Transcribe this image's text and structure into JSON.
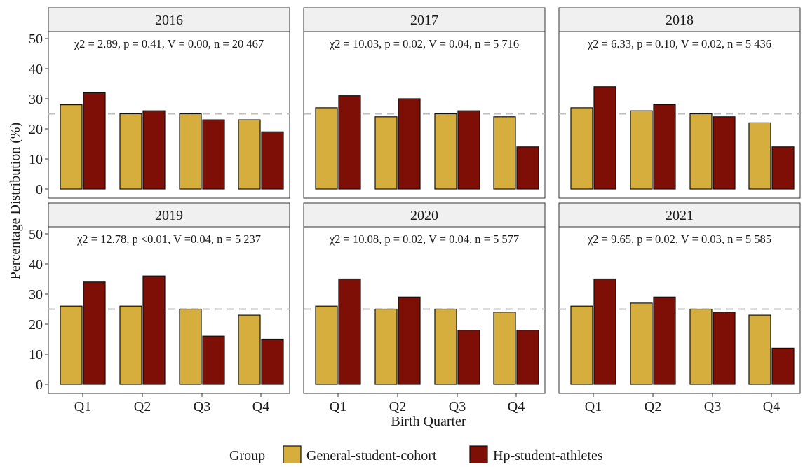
{
  "chart_data": {
    "type": "bar",
    "facet_by": "year",
    "categories": [
      "Q1",
      "Q2",
      "Q3",
      "Q4"
    ],
    "xlabel": "Birth Quarter",
    "ylabel": "Percentage Distribution (%)",
    "ylim": [
      0,
      50
    ],
    "yticks": [
      0,
      10,
      20,
      30,
      40,
      50
    ],
    "reference_line": {
      "y": 25,
      "style": "dashed",
      "color": "#bdbdbd"
    },
    "grid": false,
    "legend": {
      "title": "Group",
      "position": "bottom",
      "entries": [
        {
          "label": "General-student-cohort",
          "color": "#d6ae3d"
        },
        {
          "label": "Hp-student-athletes",
          "color": "#7d0f07"
        }
      ]
    },
    "panels": [
      {
        "title": "2016",
        "annotation": "χ2 = 2.89, p = 0.41, V = 0.00, n = 20 467",
        "series": [
          {
            "name": "General-student-cohort",
            "values": [
              28,
              25,
              25,
              23
            ]
          },
          {
            "name": "Hp-student-athletes",
            "values": [
              32,
              26,
              23,
              19
            ]
          }
        ]
      },
      {
        "title": "2017",
        "annotation": "χ2 = 10.03, p = 0.02, V = 0.04, n = 5 716",
        "series": [
          {
            "name": "General-student-cohort",
            "values": [
              27,
              24,
              25,
              24
            ]
          },
          {
            "name": "Hp-student-athletes",
            "values": [
              31,
              30,
              26,
              14
            ]
          }
        ]
      },
      {
        "title": "2018",
        "annotation": "χ2 = 6.33, p = 0.10, V = 0.02, n = 5 436",
        "series": [
          {
            "name": "General-student-cohort",
            "values": [
              27,
              26,
              25,
              22
            ]
          },
          {
            "name": "Hp-student-athletes",
            "values": [
              34,
              28,
              24,
              14
            ]
          }
        ]
      },
      {
        "title": "2019",
        "annotation": "χ2 = 12.78, p <0.01, V =0.04, n = 5 237",
        "series": [
          {
            "name": "General-student-cohort",
            "values": [
              26,
              26,
              25,
              23
            ]
          },
          {
            "name": "Hp-student-athletes",
            "values": [
              34,
              36,
              16,
              15
            ]
          }
        ]
      },
      {
        "title": "2020",
        "annotation": "χ2 = 10.08, p = 0.02, V = 0.04, n = 5 577",
        "series": [
          {
            "name": "General-student-cohort",
            "values": [
              26,
              25,
              25,
              24
            ]
          },
          {
            "name": "Hp-student-athletes",
            "values": [
              35,
              29,
              18,
              18
            ]
          }
        ]
      },
      {
        "title": "2021",
        "annotation": "χ2 = 9.65, p = 0.02, V = 0.03, n = 5 585",
        "series": [
          {
            "name": "General-student-cohort",
            "values": [
              26,
              27,
              25,
              23
            ]
          },
          {
            "name": "Hp-student-athletes",
            "values": [
              35,
              29,
              24,
              12
            ]
          }
        ]
      }
    ]
  }
}
